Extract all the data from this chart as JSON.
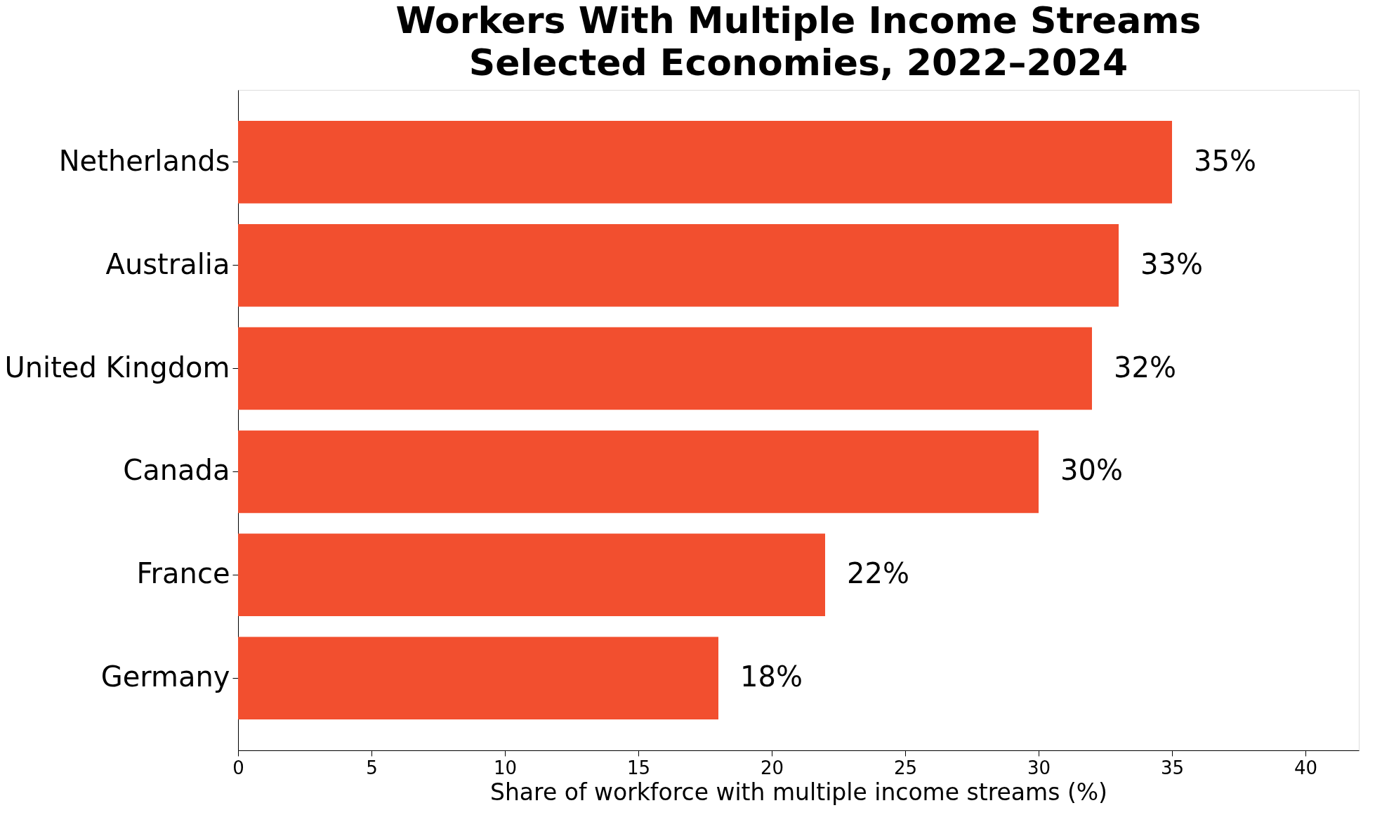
{
  "chart_data": {
    "type": "bar",
    "orientation": "horizontal",
    "title": "Workers With Multiple Income Streams\nSelected Economies, 2022–2024",
    "xlabel": "Share of workforce with multiple income streams (%)",
    "categories": [
      "Netherlands",
      "Australia",
      "United Kingdom",
      "Canada",
      "France",
      "Germany"
    ],
    "values": [
      35,
      33,
      32,
      30,
      22,
      18
    ],
    "value_labels": [
      "35%",
      "33%",
      "32%",
      "30%",
      "22%",
      "18%"
    ],
    "color": "#f24f2f",
    "xlim": [
      0,
      42
    ],
    "xticks": [
      0,
      5,
      10,
      15,
      20,
      25,
      30,
      35,
      40
    ],
    "grid": false
  }
}
